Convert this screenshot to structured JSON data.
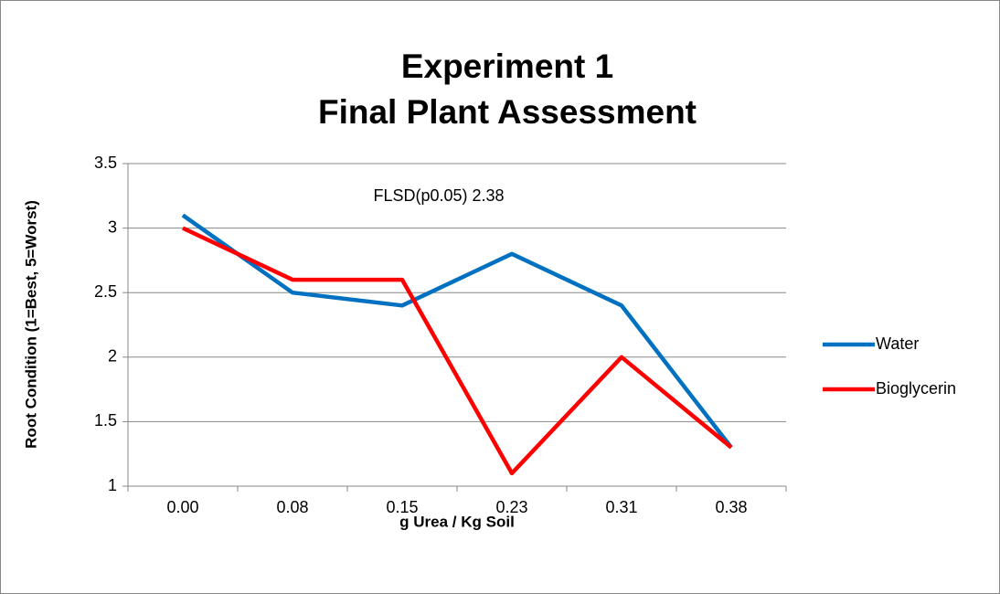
{
  "chart_data": {
    "type": "line",
    "title": "Experiment 1",
    "subtitle": "Final Plant Assessment",
    "annotation": "FLSD(p0.05) 2.38",
    "x_label": "g Urea / Kg Soil",
    "y_label": "Root Condition (1=Best, 5=Worst)",
    "categories": [
      "0.00",
      "0.08",
      "0.15",
      "0.23",
      "0.31",
      "0.38"
    ],
    "series": [
      {
        "name": "Water",
        "color": "#0070c0",
        "values": [
          3.1,
          2.5,
          2.4,
          2.8,
          2.4,
          1.3
        ]
      },
      {
        "name": "Bioglycerin",
        "color": "#ff0000",
        "values": [
          3.0,
          2.6,
          2.6,
          1.1,
          2.0,
          1.3
        ]
      }
    ],
    "ylim": [
      1,
      3.5
    ],
    "yticks": [
      1,
      1.5,
      2,
      2.5,
      3,
      3.5
    ],
    "grid": true,
    "legend": "right"
  }
}
